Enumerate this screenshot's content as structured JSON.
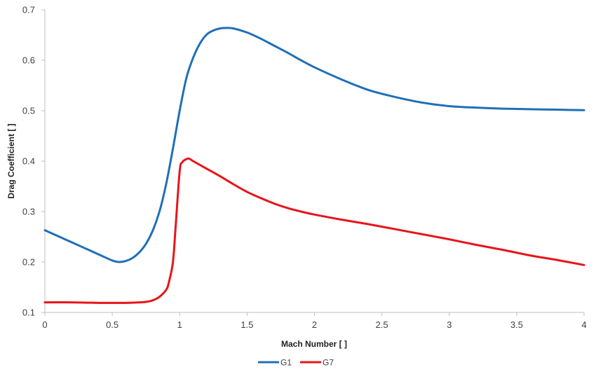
{
  "chart_data": {
    "type": "line",
    "title": "",
    "xlabel": "Mach Number [ ]",
    "ylabel": "Drag Coefficient [ ]",
    "xlim": [
      0,
      4
    ],
    "ylim": [
      0.1,
      0.7
    ],
    "xticks": [
      0,
      0.5,
      1,
      1.5,
      2,
      2.5,
      3,
      3.5,
      4
    ],
    "yticks": [
      0.1,
      0.2,
      0.3,
      0.4,
      0.5,
      0.6,
      0.7
    ],
    "xtick_labels": [
      "0",
      "0.5",
      "1",
      "1.5",
      "2",
      "2.5",
      "3",
      "3.5",
      "4"
    ],
    "ytick_labels": [
      "0.1",
      "0.2",
      "0.3",
      "0.4",
      "0.5",
      "0.6",
      "0.7"
    ],
    "grid": false,
    "legend_position": "bottom",
    "series": [
      {
        "name": "G1",
        "color": "#1f6fb8",
        "x": [
          0,
          0.1,
          0.2,
          0.3,
          0.4,
          0.5,
          0.55,
          0.6,
          0.65,
          0.7,
          0.75,
          0.8,
          0.85,
          0.9,
          0.95,
          1.0,
          1.05,
          1.1,
          1.15,
          1.2,
          1.25,
          1.3,
          1.35,
          1.4,
          1.5,
          1.6,
          1.7,
          1.8,
          1.9,
          2.0,
          2.2,
          2.4,
          2.6,
          2.8,
          3.0,
          3.2,
          3.4,
          3.6,
          3.8,
          4.0
        ],
        "y": [
          0.263,
          0.251,
          0.239,
          0.227,
          0.215,
          0.203,
          0.2,
          0.202,
          0.208,
          0.219,
          0.236,
          0.262,
          0.3,
          0.355,
          0.425,
          0.5,
          0.565,
          0.605,
          0.633,
          0.651,
          0.659,
          0.663,
          0.664,
          0.663,
          0.655,
          0.643,
          0.629,
          0.615,
          0.6,
          0.586,
          0.562,
          0.541,
          0.527,
          0.516,
          0.509,
          0.506,
          0.504,
          0.503,
          0.502,
          0.501
        ]
      },
      {
        "name": "G7",
        "color": "#e8141a",
        "x": [
          0,
          0.2,
          0.4,
          0.6,
          0.7,
          0.75,
          0.8,
          0.85,
          0.9,
          0.92,
          0.95,
          0.97,
          1.0,
          1.02,
          1.05,
          1.07,
          1.1,
          1.2,
          1.3,
          1.4,
          1.5,
          1.6,
          1.7,
          1.8,
          1.9,
          2.0,
          2.2,
          2.4,
          2.6,
          2.8,
          3.0,
          3.2,
          3.4,
          3.6,
          3.8,
          4.0
        ],
        "y": [
          0.12,
          0.12,
          0.119,
          0.119,
          0.12,
          0.121,
          0.124,
          0.131,
          0.145,
          0.16,
          0.2,
          0.27,
          0.38,
          0.398,
          0.404,
          0.405,
          0.4,
          0.385,
          0.37,
          0.354,
          0.339,
          0.327,
          0.316,
          0.307,
          0.3,
          0.294,
          0.284,
          0.275,
          0.265,
          0.255,
          0.245,
          0.234,
          0.224,
          0.213,
          0.204,
          0.194
        ]
      }
    ]
  }
}
